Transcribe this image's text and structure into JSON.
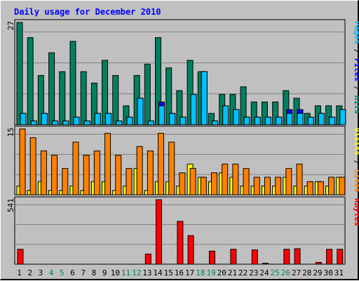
{
  "chart_data": {
    "type": "bar",
    "title": "Daily usage for December 2010",
    "days": [
      "1",
      "2",
      "3",
      "4",
      "5",
      "6",
      "7",
      "8",
      "9",
      "10",
      "11",
      "12",
      "13",
      "14",
      "15",
      "16",
      "17",
      "18",
      "19",
      "20",
      "21",
      "22",
      "23",
      "24",
      "25",
      "26",
      "27",
      "28",
      "29",
      "30",
      "31"
    ],
    "weekend_days": [
      "4",
      "5",
      "11",
      "12",
      "18",
      "19",
      "25",
      "26"
    ],
    "panels": [
      {
        "name": "hits-files-pages",
        "max_label": "27",
        "ylim": [
          0,
          27
        ],
        "axis_label_parts": [
          {
            "text": "Pages",
            "color": "#00c0ff"
          },
          {
            "text": " / ",
            "color": "#000000"
          },
          {
            "text": "Files",
            "color": "#0000ff"
          },
          {
            "text": " / ",
            "color": "#000000"
          },
          {
            "text": "Hits",
            "color": "#008060"
          }
        ],
        "series": [
          {
            "name": "Hits",
            "color": "#008060",
            "values": [
              27,
              23,
              13,
              19,
              14,
              22,
              14,
              11,
              17,
              13,
              5,
              13,
              16,
              23,
              15,
              9,
              17,
              14,
              3,
              8,
              8,
              10,
              6,
              6,
              6,
              9,
              7,
              3,
              5,
              5,
              5
            ]
          },
          {
            "name": "Files",
            "color": "#0000ff",
            "values": [
              3,
              1,
              3,
              1,
              1,
              2,
              1,
              3,
              3,
              1,
              2,
              7,
              1,
              6,
              3,
              2,
              8,
              14,
              1,
              5,
              4,
              2,
              2,
              2,
              2,
              4,
              4,
              2,
              3,
              2,
              4
            ]
          },
          {
            "name": "Pages",
            "color": "#00c0ff",
            "values": [
              3,
              1,
              3,
              1,
              1,
              2,
              1,
              3,
              3,
              1,
              2,
              7,
              1,
              5,
              3,
              2,
              8,
              14,
              1,
              5,
              4,
              2,
              2,
              2,
              2,
              3,
              3,
              2,
              3,
              2,
              4
            ]
          }
        ]
      },
      {
        "name": "visits-sites",
        "max_label": "15",
        "ylim": [
          0,
          15
        ],
        "axis_label_parts": [
          {
            "text": "Visits",
            "color": "#ffff00"
          },
          {
            "text": " / ",
            "color": "#000000"
          },
          {
            "text": "Sites",
            "color": "#ff8000"
          }
        ],
        "series": [
          {
            "name": "Visits",
            "color": "#ffff00",
            "values": [
              2,
              1,
              3,
              1,
              1,
              2,
              1,
              3,
              3,
              1,
              2,
              6,
              1,
              3,
              3,
              2,
              7,
              4,
              3,
              5,
              4,
              2,
              2,
              2,
              2,
              4,
              2,
              2,
              3,
              2,
              4
            ]
          },
          {
            "name": "Sites",
            "color": "#ff8000",
            "values": [
              15,
              13,
              10,
              9,
              6,
              12,
              9,
              10,
              14,
              9,
              6,
              11,
              10,
              14,
              12,
              5,
              6,
              4,
              5,
              7,
              7,
              6,
              4,
              4,
              4,
              6,
              7,
              3,
              3,
              4,
              4
            ]
          }
        ]
      },
      {
        "name": "kbytes",
        "max_label": "541",
        "ylim": [
          0,
          541
        ],
        "axis_label_parts": [
          {
            "text": "KBytes",
            "color": "#ff0000"
          }
        ],
        "series": [
          {
            "name": "KBytes",
            "color": "#ff0000",
            "values": [
              125,
              0,
              0,
              0,
              0,
              0,
              0,
              0,
              0,
              0,
              0,
              0,
              85,
              541,
              0,
              360,
              240,
              0,
              110,
              0,
              125,
              0,
              120,
              8,
              0,
              125,
              130,
              0,
              15,
              125,
              125
            ]
          }
        ]
      }
    ],
    "grid": true
  },
  "colors": {
    "background": "#c0c0c0",
    "title": "#0000ff",
    "weekday_label": "#000000",
    "weekend_label": "#00805c",
    "grid": "#808080"
  }
}
